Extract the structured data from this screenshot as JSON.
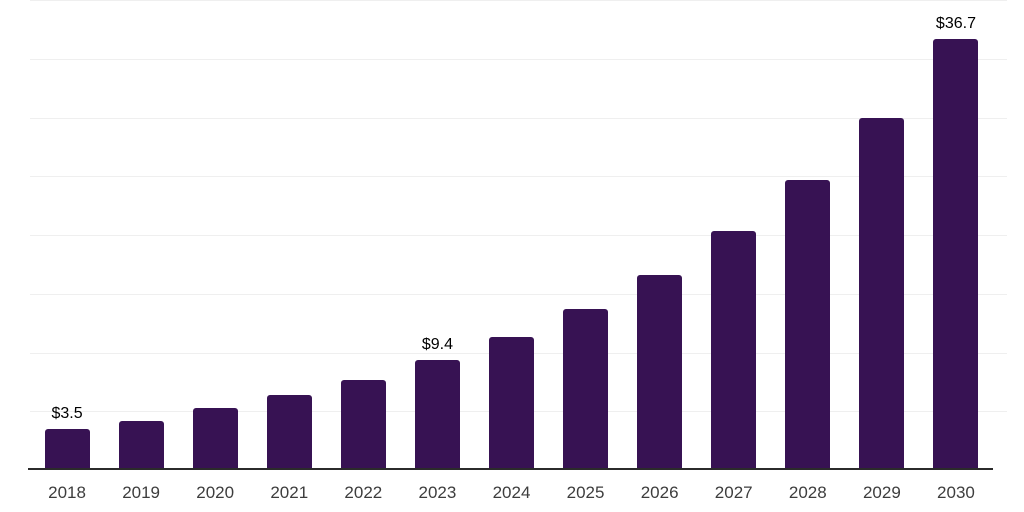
{
  "chart_data": {
    "type": "bar",
    "title": "",
    "xlabel": "",
    "ylabel": "",
    "categories": [
      "2018",
      "2019",
      "2020",
      "2021",
      "2022",
      "2023",
      "2024",
      "2025",
      "2026",
      "2027",
      "2028",
      "2029",
      "2030"
    ],
    "values": [
      3.5,
      4.2,
      5.3,
      6.4,
      7.7,
      9.4,
      11.3,
      13.7,
      16.6,
      20.3,
      24.7,
      30.0,
      36.7
    ],
    "value_labels": [
      "$3.5",
      "",
      "",
      "",
      "",
      "$9.4",
      "",
      "",
      "",
      "",
      "",
      "",
      "$36.7"
    ],
    "ylim": [
      0,
      40
    ],
    "gridline_step": 5,
    "grid": true,
    "legend": false,
    "y_tick_labels_visible": false,
    "colors": {
      "bar": "#371253",
      "axis": "#2b2b2b",
      "gridline": "#efefef",
      "value_label": "#000000",
      "tick_label": "#3d3d3d",
      "background": "#ffffff"
    }
  }
}
